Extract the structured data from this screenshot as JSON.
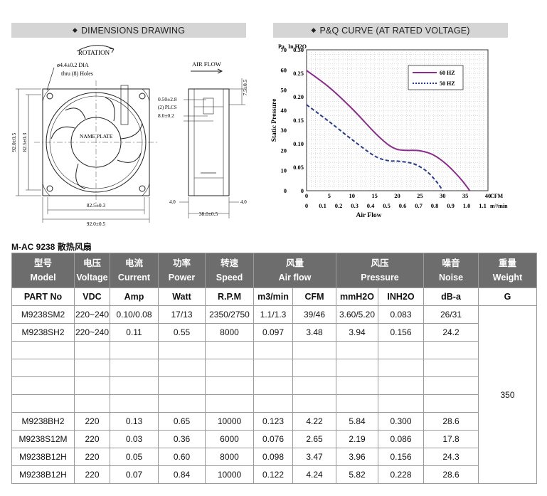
{
  "dimensions": {
    "title": "DIMENSIONS DRAWING",
    "rotation_label": "ROTATION",
    "hole_label_1": "ø4.4±0.2 DIA",
    "hole_label_2": "thru (8) Holes",
    "airflow_label": "AIR FLOW",
    "name_plate": "NAME PLATE",
    "dim_925_v": "92.0±0.5",
    "dim_825_v": "82.5±0.3",
    "dim_825_h": "82.5±0.3",
    "dim_920_h": "92.0±0.5",
    "dim_050": "0.50±2.8",
    "dim_plcs": "(2) PLCS",
    "dim_80": "8.0±0.2",
    "dim_75": "7.5±0.5",
    "dim_40_left": "4.0",
    "dim_40_right": "4.0",
    "dim_380": "38.0±0.5"
  },
  "pq": {
    "title": "P&Q CURVE (AT RATED VOLTAGE)"
  },
  "chart_data": {
    "type": "line",
    "title": "P&Q CURVE (AT RATED VOLTAGE)",
    "ylabel": "Static Pressure",
    "y_units": [
      "Pa",
      "In.H2O"
    ],
    "xlabel": "Air Flow",
    "x_units": [
      "CFM",
      "m³/min"
    ],
    "xlim": [
      0,
      40
    ],
    "ylim": [
      0,
      0.3
    ],
    "y_ticks_pa": [
      "0",
      "10",
      "20",
      "30",
      "40",
      "50",
      "60",
      "70"
    ],
    "y_ticks_inh2o": [
      "0",
      "0.05",
      "0.10",
      "0.15",
      "0.20",
      "0.25",
      "0.30"
    ],
    "x_ticks_cfm": [
      "0",
      "5",
      "10",
      "15",
      "20",
      "25",
      "30",
      "35",
      "40"
    ],
    "x_ticks_m3": [
      "0",
      "0.1",
      "0.2",
      "0.3",
      "0.4",
      "0.5",
      "0.6",
      "0.7",
      "0.8",
      "0.9",
      "1.0",
      "1.1"
    ],
    "legend_position": "top-right",
    "series": [
      {
        "name": "60 HZ",
        "color": "#8b2b8b",
        "style": "solid",
        "x": [
          0,
          5,
          10,
          15,
          18,
          20,
          22,
          25,
          28,
          31,
          34,
          36
        ],
        "y": [
          0.256,
          0.22,
          0.175,
          0.124,
          0.098,
          0.088,
          0.086,
          0.085,
          0.076,
          0.055,
          0.025,
          0
        ]
      },
      {
        "name": "50 HZ",
        "color": "#283a8a",
        "style": "dotted",
        "x": [
          0,
          5,
          10,
          15,
          18,
          20,
          23,
          25,
          27,
          29,
          30
        ],
        "y": [
          0.183,
          0.147,
          0.109,
          0.074,
          0.064,
          0.063,
          0.059,
          0.051,
          0.037,
          0.015,
          0
        ]
      }
    ]
  },
  "table": {
    "product_title": "M-AC 9238 散热风扇",
    "head_cn": [
      "型号",
      "电压",
      "电流",
      "功率",
      "转速",
      "风量",
      "风压",
      "噪音",
      "重量"
    ],
    "head_en": [
      "Model",
      "Voltage",
      "Current",
      "Power",
      "Speed",
      "Air flow",
      "Pressure",
      "Noise",
      "Weight"
    ],
    "units": [
      "PART No",
      "VDC",
      "Amp",
      "Watt",
      "R.P.M",
      "m3/min",
      "CFM",
      "mmH2O",
      "INH2O",
      "dB-a",
      "G"
    ],
    "weight_value": "350",
    "rows": [
      [
        "M9238SM2",
        "220~240",
        "0.10/0.08",
        "17/13",
        "2350/2750",
        "1.1/1.3",
        "39/46",
        "3.60/5.20",
        "0.083",
        "26/31"
      ],
      [
        "M9238SH2",
        "220~240",
        "0.11",
        "0.55",
        "8000",
        "0.097",
        "3.48",
        "3.94",
        "0.156",
        "24.2"
      ],
      [
        "",
        "",
        "",
        "",
        "",
        "",
        "",
        "",
        "",
        ""
      ],
      [
        "",
        "",
        "",
        "",
        "",
        "",
        "",
        "",
        "",
        ""
      ],
      [
        "",
        "",
        "",
        "",
        "",
        "",
        "",
        "",
        "",
        ""
      ],
      [
        "",
        "",
        "",
        "",
        "",
        "",
        "",
        "",
        "",
        ""
      ],
      [
        "M9238BH2",
        "220",
        "0.13",
        "0.65",
        "10000",
        "0.123",
        "4.22",
        "5.84",
        "0.300",
        "28.6"
      ],
      [
        "M9238S12M",
        "220",
        "0.03",
        "0.36",
        "6000",
        "0.076",
        "2.65",
        "2.19",
        "0.086",
        "17.8"
      ],
      [
        "M9238B12H",
        "220",
        "0.05",
        "0.60",
        "8000",
        "0.098",
        "3.47",
        "3.96",
        "0.156",
        "24.3"
      ],
      [
        "M9238B12H",
        "220",
        "0.07",
        "0.84",
        "10000",
        "0.122",
        "4.24",
        "5.82",
        "0.228",
        "28.6"
      ]
    ]
  }
}
